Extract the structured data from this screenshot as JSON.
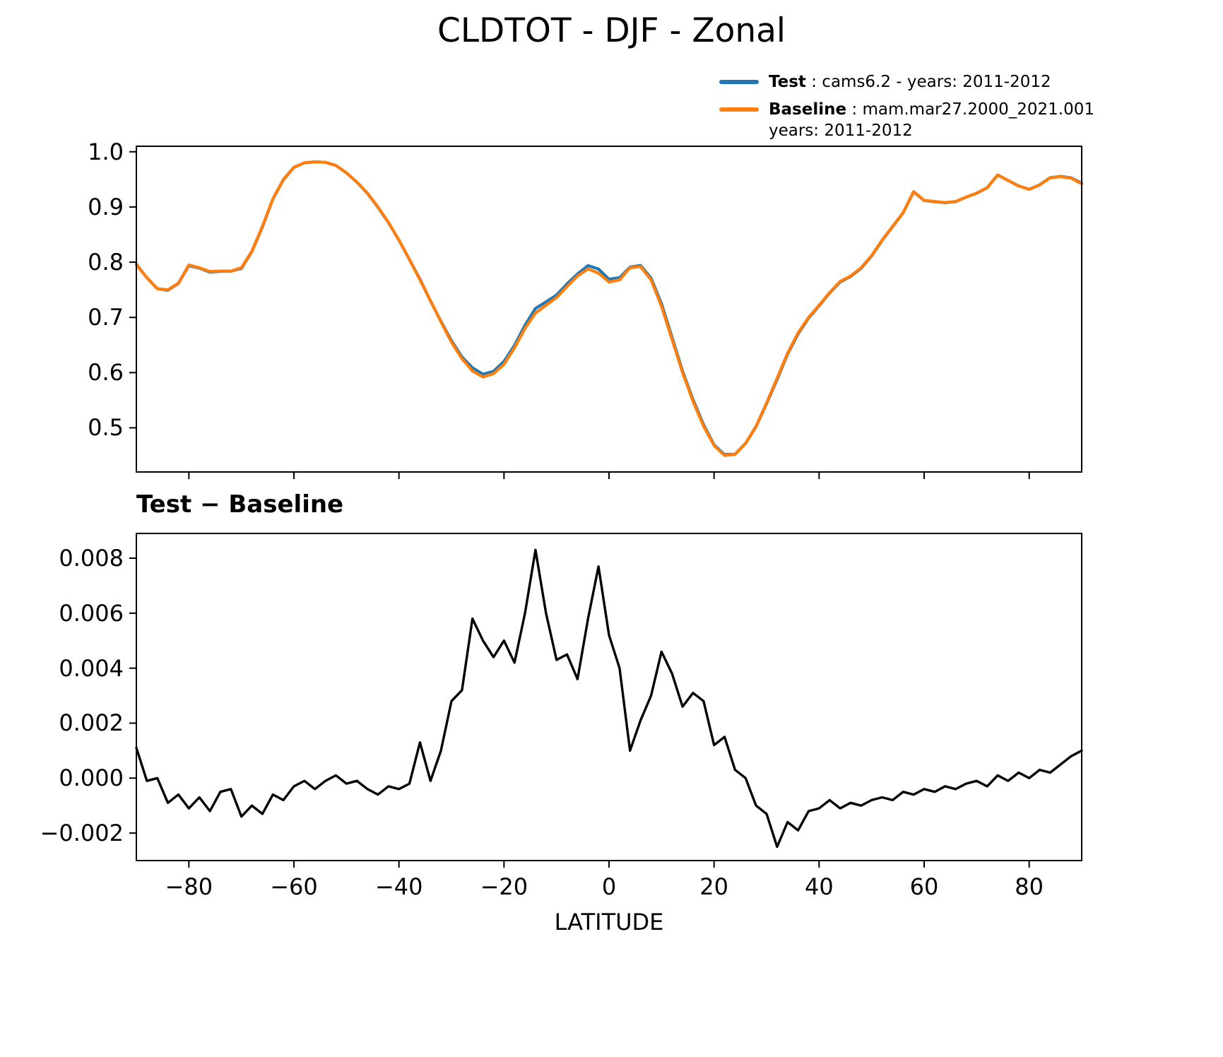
{
  "title": "CLDTOT - DJF - Zonal",
  "legend": {
    "entries": [
      {
        "label": "Test",
        "detail": " : cams6.2 - years: 2011-2012",
        "color": "#1f77b4"
      },
      {
        "label": "Baseline",
        "detail": " : mam.mar27.2000_2021.001",
        "detail_line2": "years: 2011-2012",
        "color": "#ff7f0e"
      }
    ]
  },
  "chart_data": {
    "type": "line",
    "x_label": "LATITUDE",
    "xlim": [
      -90,
      90
    ],
    "grid": false,
    "legend_position": "upper right, above axes",
    "xticks": {
      "values": [
        -80,
        -60,
        -40,
        -20,
        0,
        20,
        40,
        60,
        80
      ],
      "labels": [
        "−80",
        "−60",
        "−40",
        "−20",
        "0",
        "20",
        "40",
        "60",
        "80"
      ]
    },
    "x": [
      -90,
      -88,
      -86,
      -84,
      -82,
      -80,
      -78,
      -76,
      -74,
      -72,
      -70,
      -68,
      -66,
      -64,
      -62,
      -60,
      -58,
      -56,
      -54,
      -52,
      -50,
      -48,
      -46,
      -44,
      -42,
      -40,
      -38,
      -36,
      -34,
      -32,
      -30,
      -28,
      -26,
      -24,
      -22,
      -20,
      -18,
      -16,
      -14,
      -12,
      -10,
      -8,
      -6,
      -4,
      -2,
      0,
      2,
      4,
      6,
      8,
      10,
      12,
      14,
      16,
      18,
      20,
      22,
      24,
      26,
      28,
      30,
      32,
      34,
      36,
      38,
      40,
      42,
      44,
      46,
      48,
      50,
      52,
      54,
      56,
      58,
      60,
      62,
      64,
      66,
      68,
      70,
      72,
      74,
      76,
      78,
      80,
      82,
      84,
      86,
      88,
      90
    ],
    "panels": [
      {
        "name": "zonal-mean",
        "title": "",
        "ylim": [
          0.42,
          1.01
        ],
        "yticks": {
          "values": [
            0.5,
            0.6,
            0.7,
            0.8,
            0.9,
            1.0
          ],
          "labels": [
            "0.5",
            "0.6",
            "0.7",
            "0.8",
            "0.9",
            "1.0"
          ]
        },
        "series": [
          {
            "name": "Test",
            "color": "#1f77b4",
            "line_width": 4.2,
            "values": [
              0.7961,
              0.7719,
              0.752,
              0.7491,
              0.7614,
              0.7939,
              0.7893,
              0.7818,
              0.7835,
              0.7836,
              0.7886,
              0.819,
              0.8637,
              0.9144,
              0.9492,
              0.9717,
              0.9799,
              0.9816,
              0.9809,
              0.9751,
              0.9618,
              0.9449,
              0.9246,
              0.8994,
              0.8717,
              0.8396,
              0.8048,
              0.7693,
              0.7299,
              0.693,
              0.6578,
              0.6282,
              0.6088,
              0.597,
              0.6024,
              0.62,
              0.6492,
              0.686,
              0.7163,
              0.728,
              0.7403,
              0.7605,
              0.7786,
              0.7938,
              0.7877,
              0.7692,
              0.772,
              0.791,
              0.7941,
              0.771,
              0.7246,
              0.6638,
              0.6026,
              0.5511,
              0.5058,
              0.4692,
              0.4515,
              0.4523,
              0.472,
              0.502,
              0.5437,
              0.5875,
              0.6334,
              0.6701,
              0.6988,
              0.7209,
              0.7442,
              0.7639,
              0.7741,
              0.789,
              0.8112,
              0.8393,
              0.8642,
              0.8895,
              0.9274,
              0.9116,
              0.9095,
              0.9077,
              0.9096,
              0.9178,
              0.9249,
              0.9347,
              0.9581,
              0.9479,
              0.9382,
              0.932,
              0.9403,
              0.9532,
              0.9555,
              0.9528,
              0.943
            ]
          },
          {
            "name": "Baseline",
            "color": "#ff7f0e",
            "line_width": 4.2,
            "values": [
              0.795,
              0.772,
              0.752,
              0.75,
              0.762,
              0.795,
              0.79,
              0.783,
              0.784,
              0.784,
              0.79,
              0.82,
              0.865,
              0.915,
              0.95,
              0.972,
              0.98,
              0.982,
              0.981,
              0.975,
              0.962,
              0.945,
              0.925,
              0.9,
              0.872,
              0.84,
              0.805,
              0.768,
              0.73,
              0.692,
              0.655,
              0.625,
              0.603,
              0.592,
              0.598,
              0.615,
              0.645,
              0.68,
              0.708,
              0.722,
              0.736,
              0.756,
              0.775,
              0.788,
              0.78,
              0.764,
              0.768,
              0.79,
              0.792,
              0.768,
              0.72,
              0.66,
              0.6,
              0.548,
              0.503,
              0.468,
              0.45,
              0.452,
              0.472,
              0.503,
              0.545,
              0.59,
              0.635,
              0.672,
              0.7,
              0.722,
              0.745,
              0.765,
              0.775,
              0.79,
              0.812,
              0.84,
              0.865,
              0.89,
              0.928,
              0.912,
              0.91,
              0.908,
              0.91,
              0.918,
              0.925,
              0.935,
              0.958,
              0.948,
              0.938,
              0.932,
              0.94,
              0.953,
              0.955,
              0.952,
              0.942
            ]
          }
        ]
      },
      {
        "name": "difference",
        "title": "Test − Baseline",
        "ylim": [
          -0.003,
          0.0089
        ],
        "yticks": {
          "values": [
            -0.002,
            0.0,
            0.002,
            0.004,
            0.006,
            0.008
          ],
          "labels": [
            "−0.002",
            "0.000",
            "0.002",
            "0.004",
            "0.006",
            "0.008"
          ]
        },
        "series": [
          {
            "name": "Test minus Baseline",
            "color": "#000000",
            "line_width": 3.4,
            "values": [
              0.0011,
              -0.0001,
              0.0,
              -0.0009,
              -0.0006,
              -0.0011,
              -0.0007,
              -0.0012,
              -0.0005,
              -0.0004,
              -0.0014,
              -0.001,
              -0.0013,
              -0.0006,
              -0.0008,
              -0.0003,
              -0.0001,
              -0.0004,
              -0.0001,
              0.0001,
              -0.0002,
              -0.0001,
              -0.0004,
              -0.0006,
              -0.0003,
              -0.0004,
              -0.0002,
              0.0013,
              -0.0001,
              0.001,
              0.0028,
              0.0032,
              0.0058,
              0.005,
              0.0044,
              0.005,
              0.0042,
              0.006,
              0.0083,
              0.006,
              0.0043,
              0.0045,
              0.0036,
              0.0058,
              0.0077,
              0.0052,
              0.004,
              0.001,
              0.0021,
              0.003,
              0.0046,
              0.0038,
              0.0026,
              0.0031,
              0.0028,
              0.0012,
              0.0015,
              0.0003,
              0.0,
              -0.001,
              -0.0013,
              -0.0025,
              -0.0016,
              -0.0019,
              -0.0012,
              -0.0011,
              -0.0008,
              -0.0011,
              -0.0009,
              -0.001,
              -0.0008,
              -0.0007,
              -0.0008,
              -0.0005,
              -0.0006,
              -0.0004,
              -0.0005,
              -0.0003,
              -0.0004,
              -0.0002,
              -0.0001,
              -0.0003,
              0.0001,
              -0.0001,
              0.0002,
              0.0,
              0.0003,
              0.0002,
              0.0005,
              0.0008,
              0.001
            ]
          }
        ]
      }
    ]
  }
}
